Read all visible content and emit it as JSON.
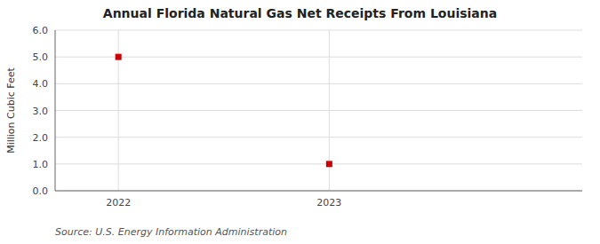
{
  "chart_data": {
    "type": "scatter",
    "title": "Annual Florida Natural Gas Net Receipts From Louisiana",
    "ylabel": "Million Cubic Feet",
    "source": "Source: U.S. Energy Information Administration",
    "x": [
      2022,
      2023
    ],
    "values": [
      5.0,
      1.0
    ],
    "color": "#cc0000",
    "marker": "square",
    "xlim": [
      2021.7,
      2024.2
    ],
    "ylim": [
      0.0,
      6.0
    ],
    "xticks": [
      2022,
      2023
    ],
    "yticks": [
      {
        "value": 0.0,
        "label": "0.0"
      },
      {
        "value": 1.0,
        "label": "1.0"
      },
      {
        "value": 2.0,
        "label": "2.0"
      },
      {
        "value": 3.0,
        "label": "3.0"
      },
      {
        "value": 4.0,
        "label": "4.0"
      },
      {
        "value": 5.0,
        "label": "5.0"
      },
      {
        "value": 6.0,
        "label": "6.0"
      }
    ],
    "grid": true
  }
}
